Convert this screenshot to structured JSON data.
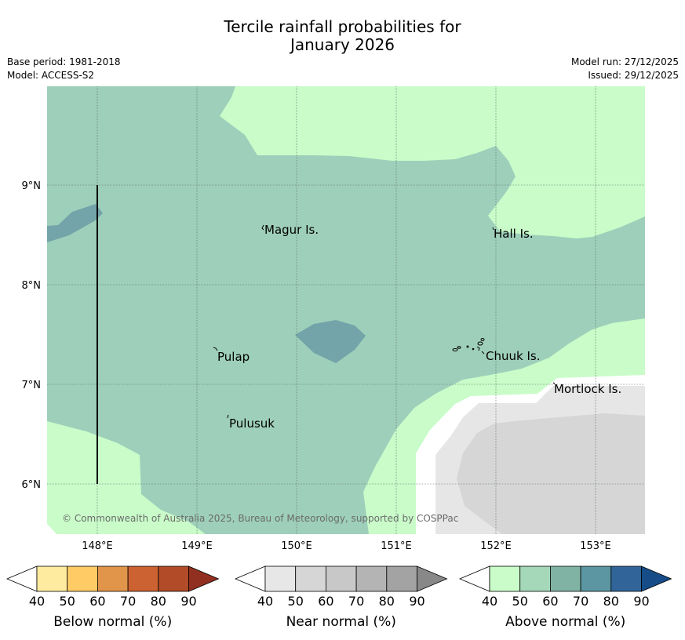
{
  "title": {
    "line1": "Tercile rainfall probabilities for",
    "line2": "January 2026"
  },
  "meta_left": {
    "base_period": "Base period: 1981-2018",
    "model": "Model: ACCESS-S2"
  },
  "meta_right": {
    "model_run": "Model run: 27/12/2025",
    "issued": "Issued: 29/12/2025"
  },
  "map": {
    "lon_ticks": [
      "148°E",
      "149°E",
      "150°E",
      "151°E",
      "152°E",
      "153°E"
    ],
    "lat_ticks": [
      "9°N",
      "8°N",
      "7°N",
      "6°N"
    ],
    "places": [
      {
        "name": "Magur Is.",
        "lon": 149.7,
        "lat": 8.55
      },
      {
        "name": "Hall Is.",
        "lon": 151.95,
        "lat": 8.5
      },
      {
        "name": "Pulap",
        "lon": 149.2,
        "lat": 7.3
      },
      {
        "name": "Chuuk Is.",
        "lon": 151.85,
        "lat": 7.3
      },
      {
        "name": "Mortlock Is.",
        "lon": 152.6,
        "lat": 6.97
      },
      {
        "name": "Pulusuk",
        "lon": 149.3,
        "lat": 6.65
      }
    ],
    "copyright": "© Commonwealth of Australia 2025, Bureau of Meteorology, supported by COSPPac",
    "colors": {
      "above_40_50": "#c9fcc9",
      "above_50_60": "#9ecfba",
      "above_60_70": "#73a4a9",
      "near_40_50": "#e6e6e6",
      "near_50_60": "#d6d6d6",
      "no_dominant": "#ffffff"
    }
  },
  "colorbars": [
    {
      "name": "below-normal",
      "title": "Below normal (%)",
      "ticks": [
        "40",
        "50",
        "60",
        "70",
        "80",
        "90"
      ],
      "colors": [
        "#ffeb9f",
        "#fecb64",
        "#e1954a",
        "#cc6231",
        "#b14b28",
        "#913020"
      ]
    },
    {
      "name": "near-normal",
      "title": "Near normal (%)",
      "ticks": [
        "40",
        "50",
        "60",
        "70",
        "80",
        "90"
      ],
      "colors": [
        "#e7e7e7",
        "#d6d6d6",
        "#c8c8c8",
        "#b4b4b4",
        "#a3a3a3",
        "#888888"
      ]
    },
    {
      "name": "above-normal",
      "title": "Above normal (%)",
      "ticks": [
        "40",
        "50",
        "60",
        "70",
        "80",
        "90"
      ],
      "colors": [
        "#c9fcc9",
        "#a5d8b8",
        "#80b3a4",
        "#5b96a2",
        "#31659a",
        "#164c87"
      ]
    }
  ]
}
